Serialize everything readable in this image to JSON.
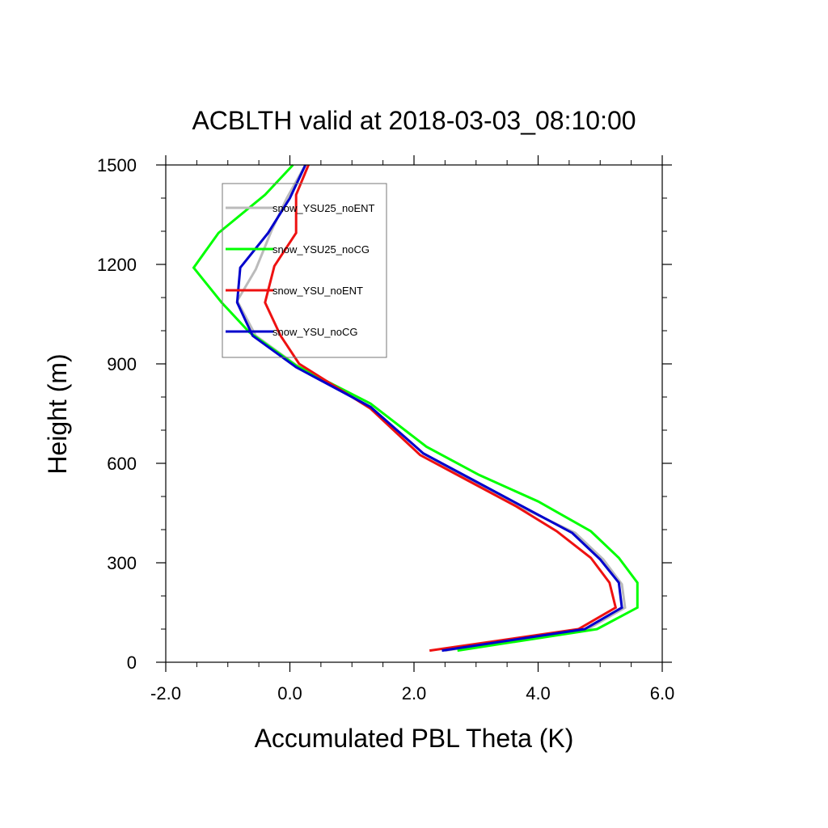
{
  "chart_data": {
    "type": "line",
    "title": "ACBLTH valid at 2018-03-03_08:10:00",
    "xlabel": "Accumulated PBL Theta (K)",
    "ylabel": "Height (m)",
    "xlim": [
      -2.0,
      6.0
    ],
    "ylim": [
      0,
      1500
    ],
    "xticks": [
      -2.0,
      0.0,
      2.0,
      4.0,
      6.0
    ],
    "xtick_labels": [
      "-2.0",
      "0.0",
      "2.0",
      "4.0",
      "6.0"
    ],
    "yticks": [
      0,
      300,
      600,
      900,
      1200,
      1500
    ],
    "ytick_labels": [
      "0",
      "300",
      "600",
      "900",
      "1200",
      "1500"
    ],
    "grid": false,
    "legend": "top-left",
    "series": [
      {
        "name": "snow_YSU25_noENT",
        "color": "#bbbbbb",
        "points": [
          [
            2.5,
            35
          ],
          [
            4.8,
            100
          ],
          [
            5.4,
            165
          ],
          [
            5.35,
            235
          ],
          [
            5.05,
            310
          ],
          [
            4.6,
            390
          ],
          [
            3.7,
            470
          ],
          [
            2.9,
            550
          ],
          [
            2.15,
            630
          ],
          [
            1.3,
            770
          ],
          [
            0.15,
            890
          ],
          [
            -0.55,
            985
          ],
          [
            -0.85,
            1090
          ],
          [
            -0.55,
            1185
          ],
          [
            -0.3,
            1300
          ],
          [
            -0.05,
            1400
          ],
          [
            0.25,
            1500
          ]
        ]
      },
      {
        "name": "snow_YSU25_noCG",
        "color": "#00ff00",
        "points": [
          [
            2.7,
            35
          ],
          [
            4.95,
            100
          ],
          [
            5.6,
            165
          ],
          [
            5.6,
            240
          ],
          [
            5.3,
            315
          ],
          [
            4.85,
            395
          ],
          [
            4.0,
            485
          ],
          [
            3.05,
            565
          ],
          [
            2.2,
            650
          ],
          [
            1.3,
            780
          ],
          [
            0.1,
            895
          ],
          [
            -0.65,
            995
          ],
          [
            -1.1,
            1085
          ],
          [
            -1.55,
            1190
          ],
          [
            -1.15,
            1295
          ],
          [
            -0.4,
            1410
          ],
          [
            0.05,
            1500
          ]
        ]
      },
      {
        "name": "snow_YSU_noENT",
        "color": "#ee1111",
        "points": [
          [
            2.25,
            35
          ],
          [
            4.65,
            100
          ],
          [
            5.25,
            165
          ],
          [
            5.15,
            240
          ],
          [
            4.85,
            315
          ],
          [
            4.3,
            395
          ],
          [
            3.65,
            470
          ],
          [
            2.85,
            550
          ],
          [
            2.1,
            625
          ],
          [
            1.3,
            765
          ],
          [
            0.15,
            900
          ],
          [
            -0.15,
            985
          ],
          [
            -0.4,
            1085
          ],
          [
            -0.25,
            1195
          ],
          [
            0.1,
            1295
          ],
          [
            0.1,
            1410
          ],
          [
            0.3,
            1500
          ]
        ]
      },
      {
        "name": "snow_YSU_noCG",
        "color": "#0000cc",
        "points": [
          [
            2.45,
            35
          ],
          [
            4.75,
            100
          ],
          [
            5.35,
            165
          ],
          [
            5.3,
            240
          ],
          [
            5.0,
            310
          ],
          [
            4.55,
            390
          ],
          [
            3.7,
            475
          ],
          [
            2.95,
            550
          ],
          [
            2.15,
            630
          ],
          [
            1.3,
            770
          ],
          [
            0.1,
            890
          ],
          [
            -0.6,
            985
          ],
          [
            -0.85,
            1085
          ],
          [
            -0.8,
            1190
          ],
          [
            -0.35,
            1295
          ],
          [
            0.0,
            1400
          ],
          [
            0.25,
            1500
          ]
        ]
      }
    ]
  }
}
